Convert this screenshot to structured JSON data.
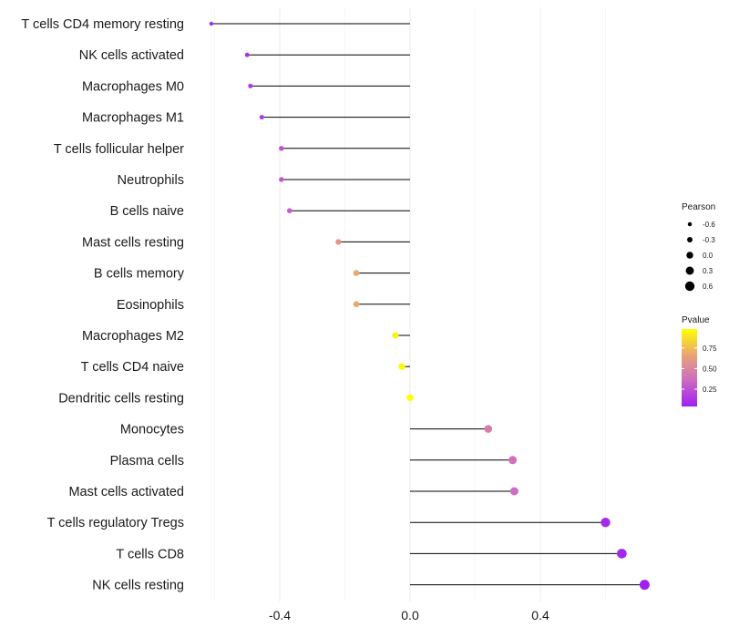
{
  "chart_data": {
    "type": "lollipop",
    "title": "",
    "xlabel": "",
    "ylabel": "",
    "xlim": [
      -0.62,
      0.75
    ],
    "x_ticks": [
      -0.4,
      0.0,
      0.4
    ],
    "x_tick_labels": [
      "-0.4",
      "0.0",
      "0.4"
    ],
    "categories": [
      "T cells CD4 memory resting",
      "NK cells activated",
      "Macrophages M0",
      "Macrophages M1",
      "T cells follicular helper",
      "Neutrophils",
      "B cells naive",
      "Mast cells resting",
      "B cells memory",
      "Eosinophils",
      "Macrophages M2",
      "T cells CD4 naive",
      "Dendritic cells resting",
      "Monocytes",
      "Plasma cells",
      "Mast cells activated",
      "T cells regulatory  Tregs",
      "T cells CD8",
      "NK cells resting"
    ],
    "pearson": [
      -0.61,
      -0.5,
      -0.49,
      -0.455,
      -0.395,
      -0.395,
      -0.37,
      -0.22,
      -0.165,
      -0.165,
      -0.045,
      -0.025,
      0.0,
      0.24,
      0.315,
      0.32,
      0.6,
      0.65,
      0.72
    ],
    "pvalue": [
      0.08,
      0.12,
      0.14,
      0.17,
      0.25,
      0.28,
      0.3,
      0.6,
      0.68,
      0.68,
      0.93,
      0.96,
      0.98,
      0.45,
      0.38,
      0.37,
      0.08,
      0.07,
      0.04
    ],
    "legend_size": {
      "title": "Pearson",
      "values": [
        -0.6,
        -0.3,
        0.0,
        0.3,
        0.6
      ],
      "labels": [
        "-0.6",
        "-0.3",
        "0.0",
        "0.3",
        "0.6"
      ]
    },
    "legend_color": {
      "title": "Pvalue",
      "range": [
        0.04,
        0.98
      ],
      "ticks": [
        0.75,
        0.5,
        0.25
      ],
      "labels": [
        "0.75",
        "0.50",
        "0.25"
      ],
      "low_color": "#a020f0",
      "high_color": "#ffff00"
    },
    "grid": true,
    "stem_color": "#000000"
  }
}
